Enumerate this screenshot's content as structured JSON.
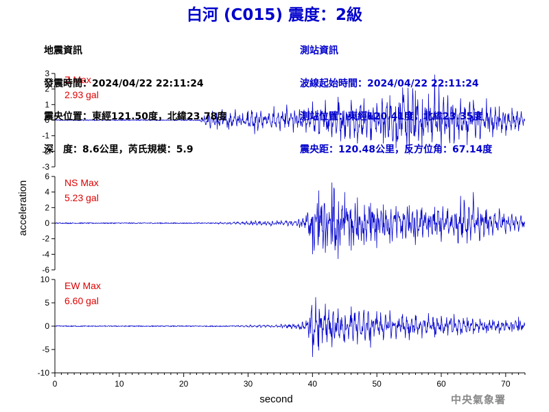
{
  "title": "白河 (C015) 震度：2級",
  "epicenter_info": {
    "heading": "地震資訊",
    "origin_time": "發震時間：2024/04/22 22:11:24",
    "location": "震央位置：東經121.50度，北緯23.78度",
    "depth_magnitude": "深　度：8.6公里，芮氏規模：5.9"
  },
  "station_info": {
    "heading": "測站資訊",
    "wave_start_time": "波線起始時間：2024/04/22 22:11:24",
    "location": "測站位置：東經120.41度，北緯23.35度",
    "distance_azimuth": "震央距：120.48公里，反方位角：67.14度"
  },
  "agency": "中央氣象署",
  "colors": {
    "trace": "#0000cc",
    "label": "#dd0000",
    "title": "#0000cc",
    "axis": "#000000"
  },
  "chart_data": {
    "type": "line",
    "xlabel": "second",
    "ylabel": "acceleration",
    "xlim": [
      0,
      73
    ],
    "xticks": [
      0,
      10,
      20,
      30,
      40,
      50,
      60,
      70
    ],
    "grid": false,
    "panels": [
      {
        "name": "Z",
        "max_label": "Z Max",
        "max_value": "2.93 gal",
        "ylim": [
          -3,
          3
        ],
        "yticks": [
          3,
          2,
          1,
          0,
          -1,
          -2,
          -3
        ],
        "samples": [
          [
            0,
            0
          ],
          [
            22.5,
            0
          ],
          [
            23.2,
            0.4
          ],
          [
            23.8,
            -0.5
          ],
          [
            24.5,
            0.6
          ],
          [
            25.2,
            -0.6
          ],
          [
            26,
            0.7
          ],
          [
            27,
            -0.6
          ],
          [
            28,
            0.7
          ],
          [
            29,
            -0.5
          ],
          [
            30,
            0.6
          ],
          [
            31,
            -0.9
          ],
          [
            32,
            0.6
          ],
          [
            33,
            -0.5
          ],
          [
            34,
            0.9
          ],
          [
            35,
            -0.7
          ],
          [
            36,
            1.0
          ],
          [
            37,
            -0.8
          ],
          [
            38,
            0.7
          ],
          [
            39,
            -0.8
          ],
          [
            40,
            1.2
          ],
          [
            41,
            -0.9
          ],
          [
            42,
            1.3
          ],
          [
            43,
            -1.1
          ],
          [
            44,
            1.5
          ],
          [
            45,
            -1.2
          ],
          [
            46,
            1.3
          ],
          [
            47,
            -1.5
          ],
          [
            48,
            1.4
          ],
          [
            49,
            -1.3
          ],
          [
            50,
            1.1
          ],
          [
            51,
            -1.5
          ],
          [
            52,
            1.6
          ],
          [
            53,
            -1.8
          ],
          [
            54,
            2.1
          ],
          [
            55,
            -2.2
          ],
          [
            56,
            1.9
          ],
          [
            57,
            -1.8
          ],
          [
            58,
            1.7
          ],
          [
            59,
            2.93
          ],
          [
            60,
            -1.9
          ],
          [
            61,
            1.6
          ],
          [
            62,
            -1.5
          ],
          [
            63,
            1.4
          ],
          [
            64,
            -1.6
          ],
          [
            65,
            1.3
          ],
          [
            66,
            -1.2
          ],
          [
            67,
            1.4
          ],
          [
            68,
            -1.1
          ],
          [
            69,
            0.9
          ],
          [
            70,
            -1.0
          ],
          [
            71,
            0.8
          ],
          [
            72,
            -0.7
          ],
          [
            73,
            0.6
          ]
        ]
      },
      {
        "name": "NS",
        "max_label": "NS Max",
        "max_value": "5.23 gal",
        "ylim": [
          -6,
          6
        ],
        "yticks": [
          6,
          4,
          2,
          0,
          -2,
          -4,
          -6
        ],
        "samples": [
          [
            0,
            0
          ],
          [
            22.5,
            0
          ],
          [
            24,
            0.1
          ],
          [
            26,
            -0.15
          ],
          [
            28,
            0.2
          ],
          [
            30,
            -0.3
          ],
          [
            32,
            0.4
          ],
          [
            34,
            -0.4
          ],
          [
            36,
            0.5
          ],
          [
            38,
            -0.6
          ],
          [
            39,
            1.0
          ],
          [
            40,
            -4.0
          ],
          [
            41,
            4.2
          ],
          [
            42,
            -3.8
          ],
          [
            43,
            5.23
          ],
          [
            44,
            -4.6
          ],
          [
            45,
            4.0
          ],
          [
            46,
            -3.5
          ],
          [
            47,
            3.3
          ],
          [
            48,
            -2.8
          ],
          [
            49,
            2.6
          ],
          [
            50,
            -3.2
          ],
          [
            51,
            2.4
          ],
          [
            52,
            -2.6
          ],
          [
            53,
            2.2
          ],
          [
            54,
            -2.0
          ],
          [
            55,
            2.3
          ],
          [
            56,
            -2.8
          ],
          [
            57,
            2.0
          ],
          [
            58,
            -1.8
          ],
          [
            59,
            2.1
          ],
          [
            60,
            -2.4
          ],
          [
            61,
            1.9
          ],
          [
            62,
            -1.6
          ],
          [
            63,
            3.5
          ],
          [
            64,
            -2.6
          ],
          [
            65,
            4.0
          ],
          [
            66,
            -2.2
          ],
          [
            67,
            1.8
          ],
          [
            68,
            -1.6
          ],
          [
            69,
            1.9
          ],
          [
            70,
            -1.4
          ],
          [
            71,
            1.2
          ],
          [
            72,
            -1.1
          ],
          [
            73,
            0.8
          ]
        ]
      },
      {
        "name": "EW",
        "max_label": "EW Max",
        "max_value": "6.60 gal",
        "ylim": [
          -10,
          10
        ],
        "yticks": [
          10,
          5,
          0,
          -5,
          -10
        ],
        "samples": [
          [
            0,
            0
          ],
          [
            22.5,
            0
          ],
          [
            25,
            0.1
          ],
          [
            28,
            -0.2
          ],
          [
            31,
            0.3
          ],
          [
            34,
            -0.4
          ],
          [
            36,
            0.5
          ],
          [
            38,
            -0.7
          ],
          [
            39,
            1.2
          ],
          [
            40,
            -6.6
          ],
          [
            40.5,
            6.2
          ],
          [
            41,
            -5.2
          ],
          [
            42,
            4.8
          ],
          [
            43,
            -4.5
          ],
          [
            44,
            3.8
          ],
          [
            45,
            -3.5
          ],
          [
            46,
            4.2
          ],
          [
            47,
            -3.9
          ],
          [
            48,
            3.5
          ],
          [
            49,
            -4.6
          ],
          [
            50,
            3.2
          ],
          [
            51,
            -3.0
          ],
          [
            52,
            3.4
          ],
          [
            53,
            -2.8
          ],
          [
            54,
            2.6
          ],
          [
            55,
            -3.0
          ],
          [
            56,
            2.4
          ],
          [
            57,
            -2.6
          ],
          [
            58,
            2.8
          ],
          [
            59,
            -2.4
          ],
          [
            60,
            2.2
          ],
          [
            61,
            -2.0
          ],
          [
            62,
            2.6
          ],
          [
            63,
            -1.8
          ],
          [
            64,
            1.9
          ],
          [
            65,
            -1.7
          ],
          [
            66,
            1.6
          ],
          [
            67,
            -1.5
          ],
          [
            68,
            1.4
          ],
          [
            69,
            -1.6
          ],
          [
            70,
            1.3
          ],
          [
            71,
            -1.2
          ],
          [
            72,
            2.0
          ],
          [
            73,
            -0.8
          ]
        ]
      }
    ]
  }
}
